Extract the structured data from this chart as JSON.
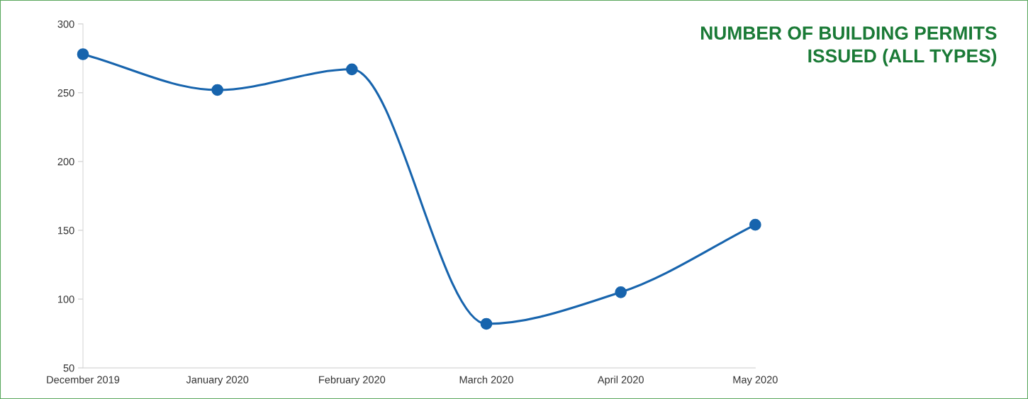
{
  "chart_data": {
    "type": "line",
    "title": "NUMBER OF BUILDING PERMITS\nISSUED (ALL TYPES)",
    "categories": [
      "December 2019",
      "January 2020",
      "February 2020",
      "March 2020",
      "April 2020",
      "May 2020"
    ],
    "series": [
      {
        "color": "#1764ad",
        "values": [
          278,
          252,
          267,
          82,
          105,
          154
        ]
      }
    ],
    "ylim": [
      50,
      300
    ],
    "yticks": [
      50,
      100,
      150,
      200,
      250,
      300
    ],
    "grid": false,
    "legend": false,
    "marker": "circle",
    "line_style": "solid"
  }
}
